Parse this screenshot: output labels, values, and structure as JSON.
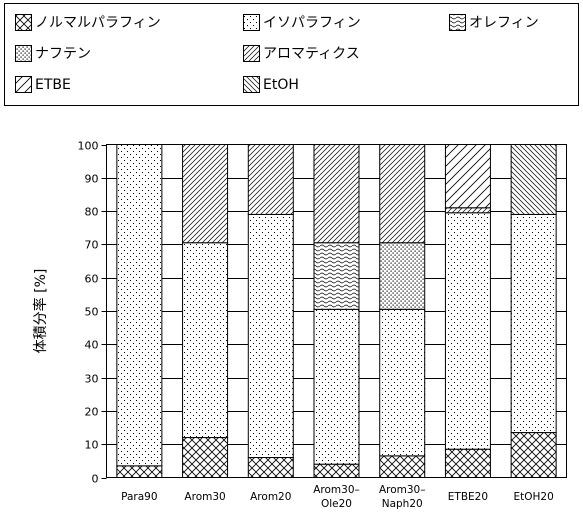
{
  "chart_data": {
    "type": "bar",
    "stacked": true,
    "ylabel": "体積分率 [%]",
    "xlabel": "",
    "ylim": [
      0,
      100
    ],
    "yticks": [
      "0",
      "10",
      "20",
      "30",
      "40",
      "50",
      "60",
      "70",
      "80",
      "90",
      "100"
    ],
    "grid": "horizontal",
    "legend_placement": "top",
    "categories": [
      [
        "Para90"
      ],
      [
        "Arom30"
      ],
      [
        "Arom20"
      ],
      [
        "Arom30–",
        "Ole20"
      ],
      [
        "Arom30–",
        "Naph20"
      ],
      [
        "ETBE20"
      ],
      [
        "EtOH20"
      ]
    ],
    "series": [
      {
        "name": "ノルマルパラフィン",
        "pattern": "crosshatch",
        "values": [
          3.5,
          12,
          6,
          4,
          6.5,
          8.5,
          13.5
        ]
      },
      {
        "name": "イソパラフィン",
        "pattern": "dots",
        "values": [
          96.5,
          58.5,
          73,
          46.5,
          44,
          71,
          65.5
        ]
      },
      {
        "name": "オレフィン",
        "pattern": "wavy",
        "values": [
          0,
          0,
          0,
          20,
          0,
          0,
          0
        ]
      },
      {
        "name": "ナフテン",
        "pattern": "densedots",
        "values": [
          0,
          0,
          0,
          0,
          20,
          0,
          0
        ]
      },
      {
        "name": "アロマティクス",
        "pattern": "diag-dense",
        "values": [
          0,
          29.5,
          21,
          29.5,
          29.5,
          1.5,
          0
        ]
      },
      {
        "name": "ETBE",
        "pattern": "diag-sparse",
        "values": [
          0,
          0,
          0,
          0,
          0,
          19,
          0
        ]
      },
      {
        "name": "EtOH",
        "pattern": "backdiag",
        "values": [
          0,
          0,
          0,
          0,
          0,
          0,
          21
        ]
      }
    ],
    "legend_order": [
      0,
      1,
      2,
      3,
      4,
      5,
      6
    ]
  }
}
